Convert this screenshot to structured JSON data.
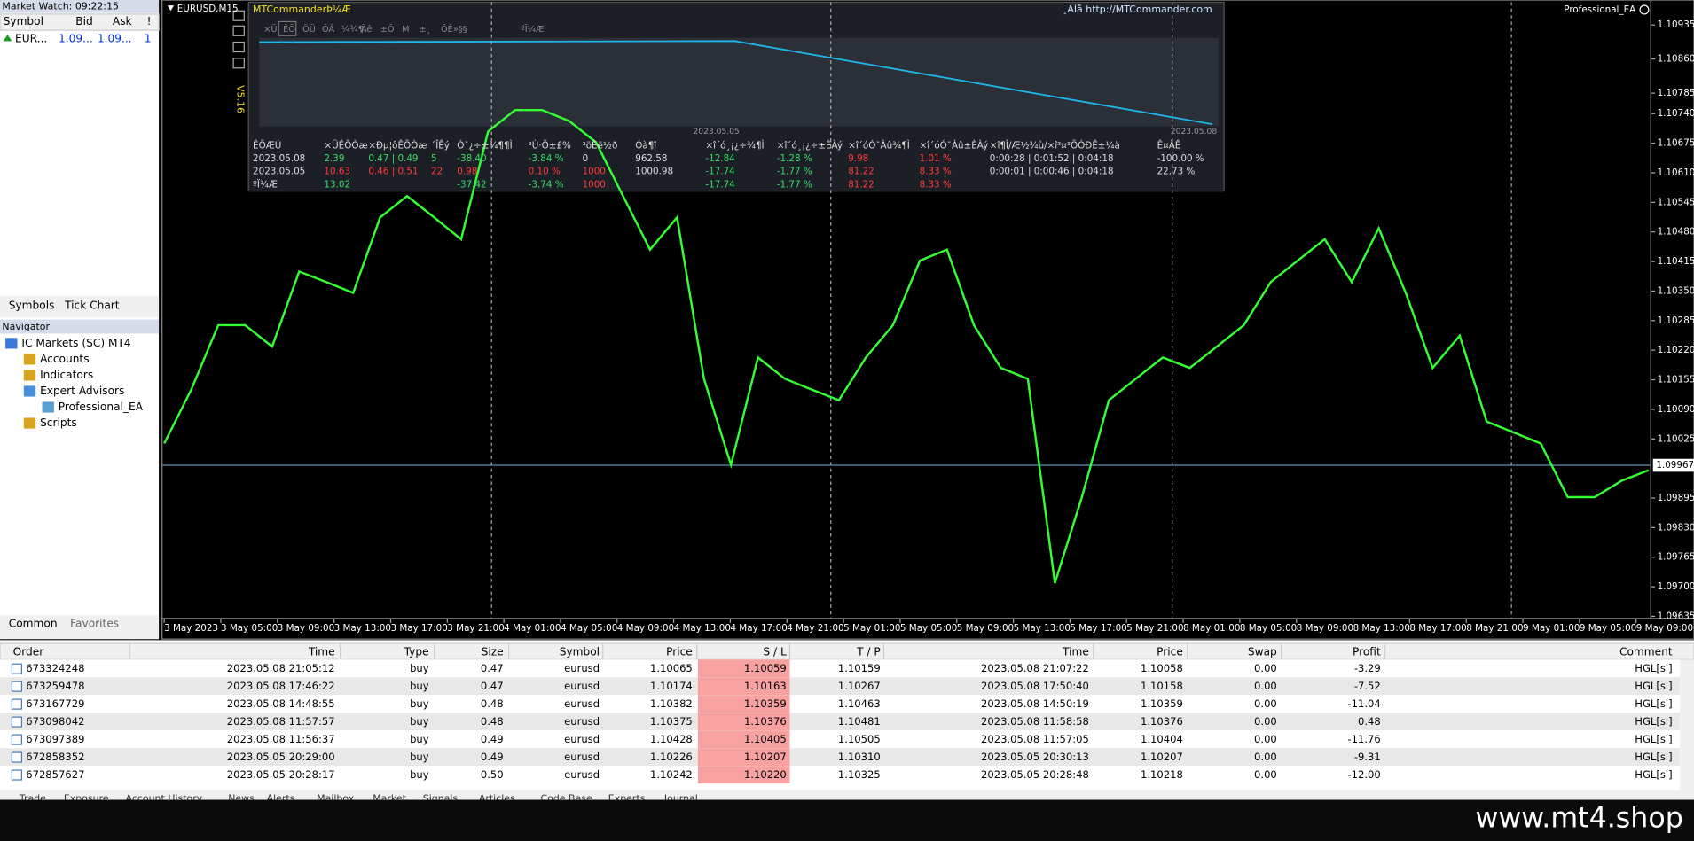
{
  "market_watch": {
    "title": "Market Watch: 09:22:15",
    "headers": [
      "Symbol",
      "Bid",
      "Ask",
      "!"
    ],
    "row": [
      "EUR...",
      "1.09...",
      "1.09...",
      "1"
    ]
  },
  "left_tabs": [
    "Symbols",
    "Tick Chart"
  ],
  "navigator": {
    "title": "Navigator",
    "items": [
      "IC Markets (SC) MT4",
      "Accounts",
      "Indicators",
      "Expert Advisors",
      "Professional_EA",
      "Scripts"
    ],
    "tabs": [
      "Common",
      "Favorites"
    ]
  },
  "chart": {
    "symbol": "EURUSD,M15",
    "ea": "Professional_EA",
    "current_price": 1.09967,
    "ylim": [
      1.0963,
      1.10985
    ],
    "yticks": [
      1.10935,
      {
        "value": 1.1086,
        "label": "1.10860"
      },
      1.10785,
      {
        "value": 1.1074,
        "label": "1.10740"
      },
      1.10675,
      {
        "value": 1.1061,
        "label": "1.10610"
      },
      1.10545,
      {
        "value": 1.1048,
        "label": "1.10480"
      },
      1.10415,
      {
        "value": 1.1035,
        "label": "1.10350"
      },
      1.10285,
      {
        "value": 1.1022,
        "label": "1.10220"
      },
      1.10155,
      {
        "value": 1.1009,
        "label": "1.10090"
      },
      1.10025,
      1.09895,
      {
        "value": 1.0983,
        "label": "1.09830"
      },
      1.09765,
      {
        "value": 1.097,
        "label": "1.09700"
      },
      1.09635
    ],
    "x_labels": [
      "3 May 2023",
      "3 May 05:00",
      "3 May 09:00",
      "3 May 13:00",
      "3 May 17:00",
      "3 May 21:00",
      "4 May 01:00",
      "4 May 05:00",
      "4 May 09:00",
      "4 May 13:00",
      "4 May 17:00",
      "4 May 21:00",
      "5 May 01:00",
      "5 May 05:00",
      "5 May 09:00",
      "5 May 13:00",
      "5 May 17:00",
      "5 May 21:00",
      "8 May 01:00",
      "8 May 05:00",
      "8 May 09:00",
      "8 May 13:00",
      "8 May 17:00",
      "8 May 21:00",
      "9 May 01:00",
      "9 May 05:00",
      "9 May 09:00"
    ],
    "closes": [
      1.10015,
      1.10133,
      1.10275,
      1.10275,
      1.10228,
      1.10393,
      1.1037,
      1.10346,
      1.10512,
      1.10559,
      1.10512,
      1.10464,
      1.10701,
      1.10748,
      1.10748,
      1.10724,
      1.10677,
      1.10559,
      1.10441,
      1.10512,
      1.10157,
      1.09968,
      1.10204,
      1.10157,
      1.10133,
      1.1011,
      1.10204,
      1.10275,
      1.10417,
      1.10441,
      1.10275,
      1.10181,
      1.10157,
      1.09708,
      1.09897,
      1.1011,
      1.10157,
      1.10204,
      1.10181,
      1.10228,
      1.10275,
      1.1037,
      1.10417,
      1.10464,
      1.1037,
      1.10488,
      1.10346,
      1.10181,
      1.10252,
      1.10063,
      1.10039,
      1.10015,
      1.09897,
      1.09897,
      1.09933,
      1.09956
    ]
  },
  "panel": {
    "title": "MTCommanderÞ¼Æ",
    "link": "¸ÃÌå http://MTCommander.com",
    "version": "V5.16",
    "toolbar": [
      "×Ü",
      "ÊÕ",
      "ÖÜ",
      "ÔÂ",
      "¼¾¶",
      "Äê",
      "±Ô",
      "M",
      "±¸",
      "ÕÊ»§§",
      "ºÏ¼Æ"
    ],
    "mini_dates": [
      "2023.05.05",
      "2023.05.08"
    ],
    "headers": [
      "ÊÕÆÚ",
      "×ÜÊÕÒæ",
      "×Ðµ¦ôÊÕÒæ",
      "´ÎÊý",
      "Ó¯¿÷±¾¶¶Ì",
      "³Ù·Õ±£%",
      "³öÈë½ð",
      "Óà¶î",
      "×î´ó¸¡¿÷¾¶Ì",
      "×î´ó¸¡¿÷±ÈÀý",
      "×î´óÓ¯Àû¾¶Ì",
      "×î´óÓ¯Àû±ÈÀý",
      "×î¶Ì/Æ½¾ù/×î³¤³ÖÓÐÊ±¼ä",
      "Ê¤ÂÊ"
    ],
    "rows": [
      [
        "2023.05.08",
        "2.39",
        "0.47 | 0.49",
        "5",
        "-38.40",
        "-3.84 %",
        "0",
        "962.58",
        "-12.84",
        "-1.28 %",
        "9.98",
        "1.01 %",
        "0:00:28 | 0:01:52 | 0:04:18",
        "-100.00 %"
      ],
      [
        "2023.05.05",
        "10.63",
        "0.46 | 0.51",
        "22",
        "0.98",
        "0.10 %",
        "1000",
        "1000.98",
        "-17.74",
        "-1.77 %",
        "81.22",
        "8.33 %",
        "0:00:01 | 0:00:46 | 0:04:18",
        "22.73 %"
      ],
      [
        "ºÏ¼Æ",
        "13.02",
        "",
        "",
        "-37.42",
        "-3.74 %",
        "1000",
        "",
        "-17.74",
        "-1.77 %",
        "81.22",
        "8.33 %",
        "",
        ""
      ]
    ]
  },
  "orders": {
    "headers": [
      "Order",
      "Time",
      "Type",
      "Size",
      "Symbol",
      "Price",
      "S / L",
      "T / P",
      "Time",
      "Price",
      "Swap",
      "Profit",
      "Comment"
    ],
    "rows": [
      [
        "673324248",
        "2023.05.08 21:05:12",
        "buy",
        "0.47",
        "eurusd",
        "1.10065",
        "1.10059",
        "1.10159",
        "2023.05.08 21:07:22",
        "1.10058",
        "0.00",
        "-3.29",
        "HGL[sl]"
      ],
      [
        "673259478",
        "2023.05.08 17:46:22",
        "buy",
        "0.47",
        "eurusd",
        "1.10174",
        "1.10163",
        "1.10267",
        "2023.05.08 17:50:40",
        "1.10158",
        "0.00",
        "-7.52",
        "HGL[sl]"
      ],
      [
        "673167729",
        "2023.05.08 14:48:55",
        "buy",
        "0.48",
        "eurusd",
        "1.10382",
        "1.10359",
        "1.10463",
        "2023.05.08 14:50:19",
        "1.10359",
        "0.00",
        "-11.04",
        "HGL[sl]"
      ],
      [
        "673098042",
        "2023.05.08 11:57:57",
        "buy",
        "0.48",
        "eurusd",
        "1.10375",
        "1.10376",
        "1.10481",
        "2023.05.08 11:58:58",
        "1.10376",
        "0.00",
        "0.48",
        "HGL[sl]"
      ],
      [
        "673097389",
        "2023.05.08 11:56:37",
        "buy",
        "0.49",
        "eurusd",
        "1.10428",
        "1.10405",
        "1.10505",
        "2023.05.08 11:57:05",
        "1.10404",
        "0.00",
        "-11.76",
        "HGL[sl]"
      ],
      [
        "672858352",
        "2023.05.05 20:29:00",
        "buy",
        "0.49",
        "eurusd",
        "1.10226",
        "1.10207",
        "1.10310",
        "2023.05.05 20:30:13",
        "1.10207",
        "0.00",
        "-9.31",
        "HGL[sl]"
      ],
      [
        "672857627",
        "2023.05.05 20:28:17",
        "buy",
        "0.50",
        "eurusd",
        "1.10242",
        "1.10220",
        "1.10325",
        "2023.05.05 20:28:48",
        "1.10218",
        "0.00",
        "-12.00",
        "HGL[sl]"
      ]
    ]
  },
  "bottom_tabs": [
    "Trade",
    "Exposure",
    "Account History",
    "News",
    "Alerts",
    "Mailbox",
    "Market",
    "Signals",
    "Articles",
    "Code Base",
    "Experts",
    "Journal"
  ],
  "watermark": "www.mt4.shop"
}
